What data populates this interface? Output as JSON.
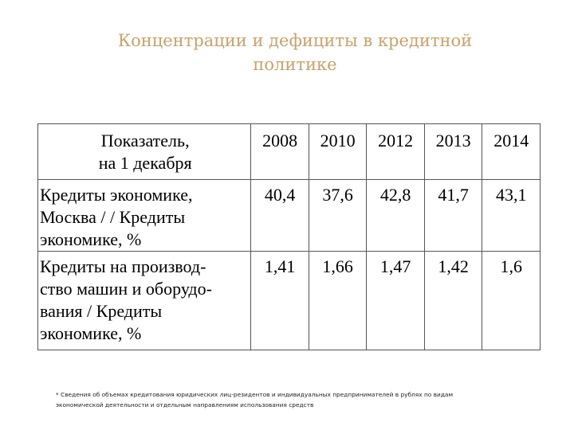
{
  "title": {
    "line1": "Концентрации и дефициты в кредитной",
    "line2": "политике"
  },
  "table": {
    "header": {
      "label_line1": "Показатель,",
      "label_line2": "на 1 декабря",
      "years": [
        "2008",
        "2010",
        "2012",
        "2013",
        "2014"
      ]
    },
    "rows": [
      {
        "label_lines": [
          "Кредиты экономике,",
          "Москва / / Кредиты",
          "экономике, %"
        ],
        "values": [
          "40,4",
          "37,6",
          "42,8",
          "41,7",
          "43,1"
        ]
      },
      {
        "label_lines": [
          "Кредиты на производ-",
          "ство машин и оборудо-",
          "вания / Кредиты",
          "экономике, %"
        ],
        "values": [
          "1,41",
          "1,66",
          "1,47",
          "1,42",
          "1,6"
        ]
      }
    ]
  },
  "footnote": {
    "line1": "* Сведения об объемах кредитования юридических лиц-резидентов и индивидуальных предпринимателей в рублях по видам",
    "line2": "экономической деятельности и отдельным направлениям использования средств"
  }
}
